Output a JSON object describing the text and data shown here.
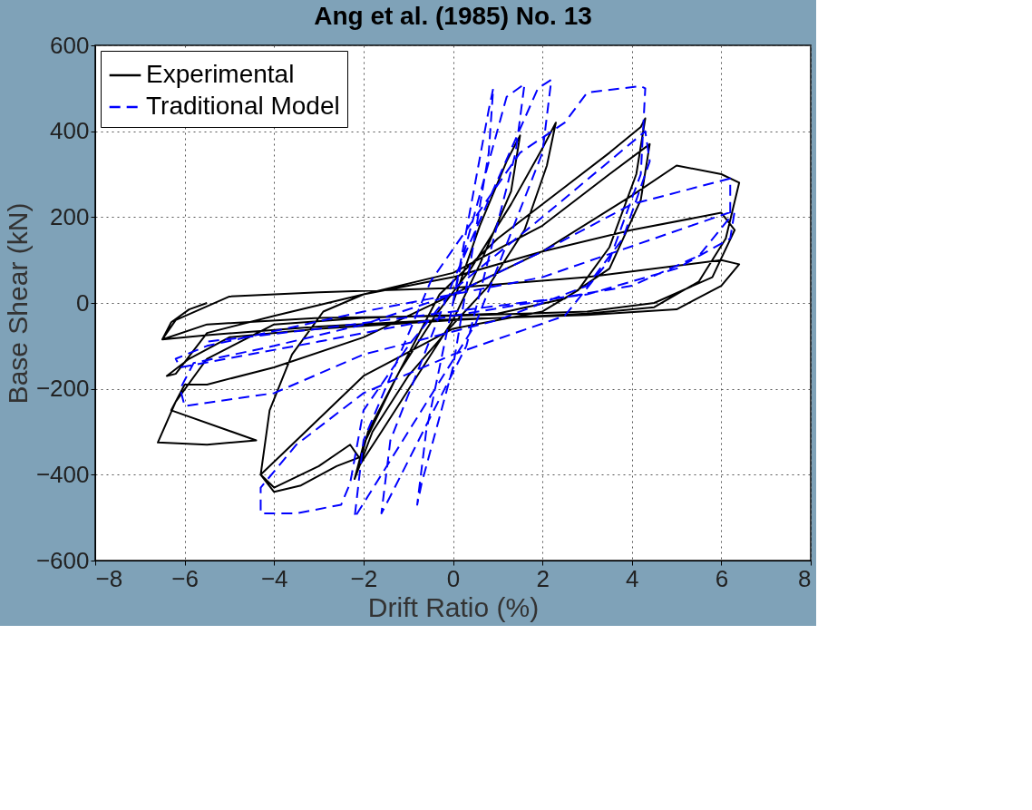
{
  "chart_data": {
    "type": "line",
    "title": "Ang et al. (1985) No. 13",
    "xlabel": "Drift Ratio (%)",
    "ylabel": "Base Shear (kN)",
    "xlim": [
      -8,
      8
    ],
    "xticks": [
      -8,
      -6,
      -4,
      -2,
      0,
      2,
      4,
      6,
      8
    ],
    "ylim": [
      -600,
      600
    ],
    "yticks": [
      -600,
      -400,
      -200,
      0,
      200,
      400,
      600
    ],
    "grid": true,
    "legend": "top left",
    "marker": "none",
    "series": [
      {
        "name": "Experimental",
        "color": "#000000",
        "line_style": "solid",
        "x": [
          0,
          0.6,
          1.2,
          1.5,
          1.3,
          0.6,
          0,
          -0.8,
          -1.6,
          -2.1,
          -1.9,
          -1.2,
          -0.4,
          0.4,
          1.3,
          2.0,
          2.3,
          2.1,
          1.6,
          0.8,
          0,
          -1,
          -1.8,
          -2.2,
          -2.0,
          -1.3,
          -0.3,
          1,
          2.5,
          3.5,
          4.2,
          4.3,
          4.1,
          3.5,
          2.8,
          2,
          0,
          -2,
          -3.5,
          -4.3,
          -4.0,
          -3.4,
          -2.6,
          -2.1,
          -2.3,
          -3.0,
          -4.0,
          -4.3,
          -4.1,
          -3.6,
          -2.9,
          -2,
          0,
          2,
          3.5,
          4.4,
          4.2,
          3.5,
          2.5,
          1,
          -2,
          -4,
          -5.5,
          -6.2,
          -6.6,
          -5.5,
          -4.4,
          -6.3,
          -6.0,
          -5.5,
          -4,
          -2,
          0,
          2,
          4,
          5,
          6,
          6.4,
          6.1,
          5.5,
          4.5,
          3,
          0,
          -3,
          -5,
          -5.9,
          -6.4,
          -6.2,
          -5.5,
          -4,
          -2,
          0,
          2,
          4,
          6,
          6.3,
          5.8,
          4.5,
          3,
          0,
          -3,
          -5.5,
          -6.5,
          -6.2,
          -5,
          -3,
          0,
          3,
          6,
          6.4,
          6,
          5,
          3,
          0,
          -3,
          -5.5,
          -6.5,
          -6.3,
          -5.9,
          -5.5
        ],
        "values": [
          0,
          180,
          330,
          390,
          260,
          90,
          -40,
          -170,
          -300,
          -380,
          -300,
          -160,
          -30,
          80,
          230,
          360,
          420,
          320,
          170,
          40,
          -50,
          -170,
          -300,
          -410,
          -330,
          -180,
          20,
          150,
          270,
          350,
          410,
          430,
          300,
          130,
          30,
          -20,
          -60,
          -170,
          -320,
          -400,
          -440,
          -425,
          -380,
          -360,
          -330,
          -380,
          -430,
          -400,
          -250,
          -120,
          -20,
          20,
          70,
          180,
          300,
          370,
          240,
          80,
          10,
          -25,
          -35,
          -50,
          -130,
          -230,
          -325,
          -330,
          -320,
          -250,
          -190,
          -190,
          -150,
          -80,
          20,
          120,
          250,
          320,
          300,
          280,
          150,
          50,
          -10,
          -25,
          -40,
          -60,
          -80,
          -130,
          -170,
          -165,
          -70,
          -30,
          20,
          60,
          120,
          170,
          210,
          170,
          60,
          0,
          -20,
          -30,
          -35,
          -50,
          -85,
          -40,
          15,
          25,
          35,
          60,
          100,
          90,
          40,
          -15,
          -28,
          -38,
          -55,
          -75,
          -85,
          -45,
          -15,
          0
        ]
      },
      {
        "name": "Traditional Model",
        "color": "#0000ff",
        "line_style": "dashed",
        "x": [
          0,
          0.8,
          0.9,
          0.8,
          0,
          -0.7,
          -0.8,
          -0.6,
          0.2,
          1.2,
          1.6,
          1.4,
          0.3,
          -1.4,
          -1.6,
          -1.4,
          0,
          1.9,
          2.2,
          2.0,
          0.5,
          -1.9,
          -2.2,
          -2.0,
          -0.5,
          1.5,
          2.5,
          3,
          4.2,
          4.3,
          4.2,
          3.5,
          2.5,
          0,
          -2,
          -3.5,
          -4.3,
          -4.3,
          -3.5,
          -2.5,
          -2.3,
          -2,
          -1,
          0,
          2,
          4.3,
          4.4,
          3.8,
          3,
          1,
          -2,
          -4,
          -6.0,
          -6.1,
          -5.8,
          -4,
          -2,
          0,
          2,
          4,
          6.2,
          6.2,
          5.5,
          4,
          0,
          -3,
          -6.1,
          -6.2,
          -5.5,
          -2,
          2,
          6.3,
          6.2,
          5,
          3,
          0,
          -3,
          -5.5
        ],
        "values": [
          0,
          450,
          500,
          350,
          -150,
          -420,
          -470,
          -300,
          100,
          480,
          510,
          350,
          -100,
          -450,
          -490,
          -320,
          50,
          500,
          520,
          350,
          -50,
          -450,
          -500,
          -320,
          50,
          350,
          420,
          490,
          505,
          500,
          300,
          100,
          -30,
          -120,
          -210,
          -330,
          -430,
          -490,
          -490,
          -470,
          -420,
          -250,
          -100,
          30,
          200,
          400,
          330,
          150,
          40,
          -40,
          -120,
          -210,
          -240,
          -200,
          -140,
          -100,
          -50,
          20,
          120,
          230,
          290,
          200,
          110,
          40,
          -30,
          -90,
          -150,
          -130,
          -100,
          -20,
          60,
          215,
          150,
          80,
          20,
          -20,
          -60,
          -90
        ]
      }
    ]
  }
}
